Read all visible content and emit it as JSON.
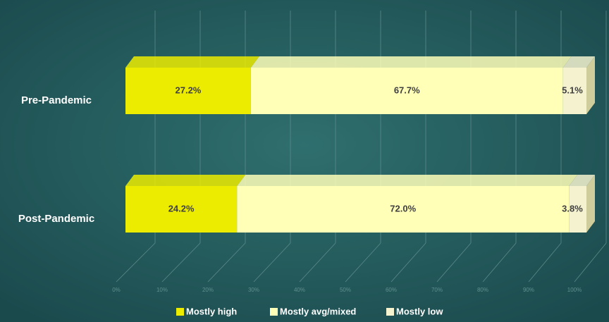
{
  "chart_data": {
    "type": "stacked_bar_horizontal",
    "categories": [
      "Pre-Pandemic",
      "Post-Pandemic"
    ],
    "series": [
      {
        "name": "Mostly high",
        "color": "#ecec00",
        "values": [
          27.2,
          24.2
        ],
        "value_labels": [
          "27.2%",
          "24.2%"
        ]
      },
      {
        "name": "Mostly avg/mixed",
        "color": "#ffffb8",
        "values": [
          67.7,
          72.0
        ],
        "value_labels": [
          "67.7%",
          "72.0%"
        ]
      },
      {
        "name": "Mostly low",
        "color": "#f4f2cf",
        "values": [
          5.1,
          3.8
        ],
        "value_labels": [
          "5.1%",
          "3.8%"
        ]
      }
    ],
    "xlim": [
      0,
      100
    ],
    "xticks": [
      {
        "value": 0,
        "label": "0%"
      },
      {
        "value": 10,
        "label": "10%"
      },
      {
        "value": 20,
        "label": "20%"
      },
      {
        "value": 30,
        "label": "30%"
      },
      {
        "value": 40,
        "label": "40%"
      },
      {
        "value": 50,
        "label": "50%"
      },
      {
        "value": 60,
        "label": "60%"
      },
      {
        "value": 70,
        "label": "70%"
      },
      {
        "value": 80,
        "label": "80%"
      },
      {
        "value": 90,
        "label": "90%"
      },
      {
        "value": 100,
        "label": "100%"
      }
    ],
    "grid": true,
    "legend": "bottom"
  }
}
